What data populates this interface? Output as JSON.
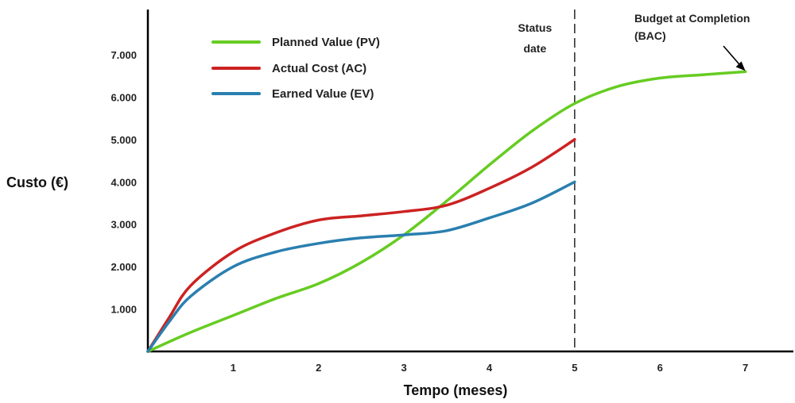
{
  "chart_data": {
    "type": "line",
    "xlabel": "Tempo (meses)",
    "ylabel": "Custo (€)",
    "xlim": [
      0,
      7.6
    ],
    "ylim": [
      0,
      7600
    ],
    "x_ticks": [
      1,
      2,
      3,
      4,
      5,
      6,
      7
    ],
    "y_ticks": [
      1000,
      2000,
      3000,
      4000,
      5000,
      6000,
      7000
    ],
    "y_tick_labels": [
      "1.000",
      "2.000",
      "3.000",
      "4.000",
      "5.000",
      "6.000",
      "7.000"
    ],
    "legend_position": "top-left",
    "series": [
      {
        "name": "Planned Value (PV)",
        "color": "#66cc22",
        "x": [
          0,
          0.5,
          1,
          1.5,
          2,
          2.5,
          3,
          3.5,
          4,
          4.5,
          5,
          5.5,
          6,
          6.5,
          7
        ],
        "y": [
          0,
          450,
          850,
          1250,
          1600,
          2100,
          2750,
          3550,
          4400,
          5200,
          5850,
          6250,
          6450,
          6530,
          6600
        ]
      },
      {
        "name": "Actual Cost (AC)",
        "color": "#cc2222",
        "x": [
          0,
          0.25,
          0.5,
          1,
          1.5,
          2,
          2.5,
          3,
          3.5,
          4,
          4.5,
          5
        ],
        "y": [
          0,
          800,
          1550,
          2350,
          2800,
          3100,
          3200,
          3300,
          3450,
          3850,
          4350,
          5000
        ]
      },
      {
        "name": "Earned Value (EV)",
        "color": "#2a7fb0",
        "x": [
          0,
          0.25,
          0.5,
          1,
          1.5,
          2,
          2.5,
          3,
          3.5,
          4,
          4.5,
          5
        ],
        "y": [
          0,
          700,
          1300,
          2000,
          2350,
          2550,
          2680,
          2750,
          2850,
          3150,
          3500,
          4000
        ]
      }
    ],
    "annotations": {
      "status_date": {
        "x": 5,
        "label_lines": [
          "Status",
          "date"
        ]
      },
      "bac": {
        "x": 7,
        "y": 6600,
        "label_lines": [
          "Budget at Completion",
          "(BAC)"
        ]
      }
    }
  }
}
